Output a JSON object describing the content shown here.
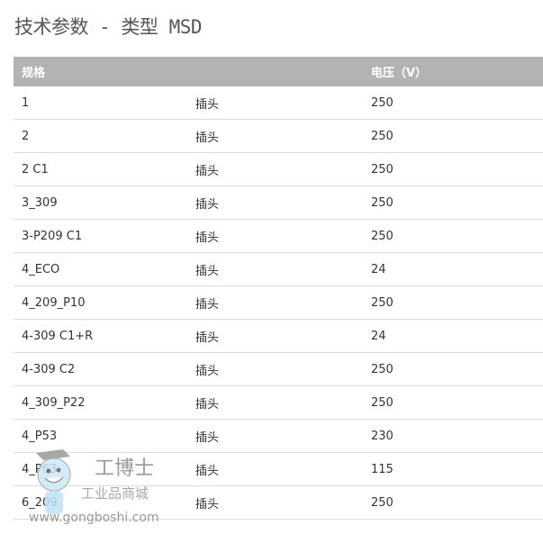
{
  "title": "技术参数 - 类型 MSD",
  "table": {
    "headers": [
      "规格",
      "",
      "电压（V）"
    ],
    "rows": [
      [
        "1",
        "插头",
        "250"
      ],
      [
        "2",
        "插头",
        "250"
      ],
      [
        "2 C1",
        "插头",
        "250"
      ],
      [
        "3_309",
        "插头",
        "250"
      ],
      [
        "3-P209 C1",
        "插头",
        "250"
      ],
      [
        "4_ECO",
        "插头",
        "24"
      ],
      [
        "4_209_P10",
        "插头",
        "250"
      ],
      [
        "4-309 C1+R",
        "插头",
        "24"
      ],
      [
        "4-309 C2",
        "插头",
        "250"
      ],
      [
        "4_309_P22",
        "插头",
        "250"
      ],
      [
        "4_P53",
        "插头",
        "230"
      ],
      [
        "4_P63",
        "插头",
        "115"
      ],
      [
        "6_209",
        "插头",
        "250"
      ]
    ]
  },
  "watermark": {
    "brand": "工博士",
    "tagline": "工业品商城",
    "url": "www.gongboshi.com"
  }
}
